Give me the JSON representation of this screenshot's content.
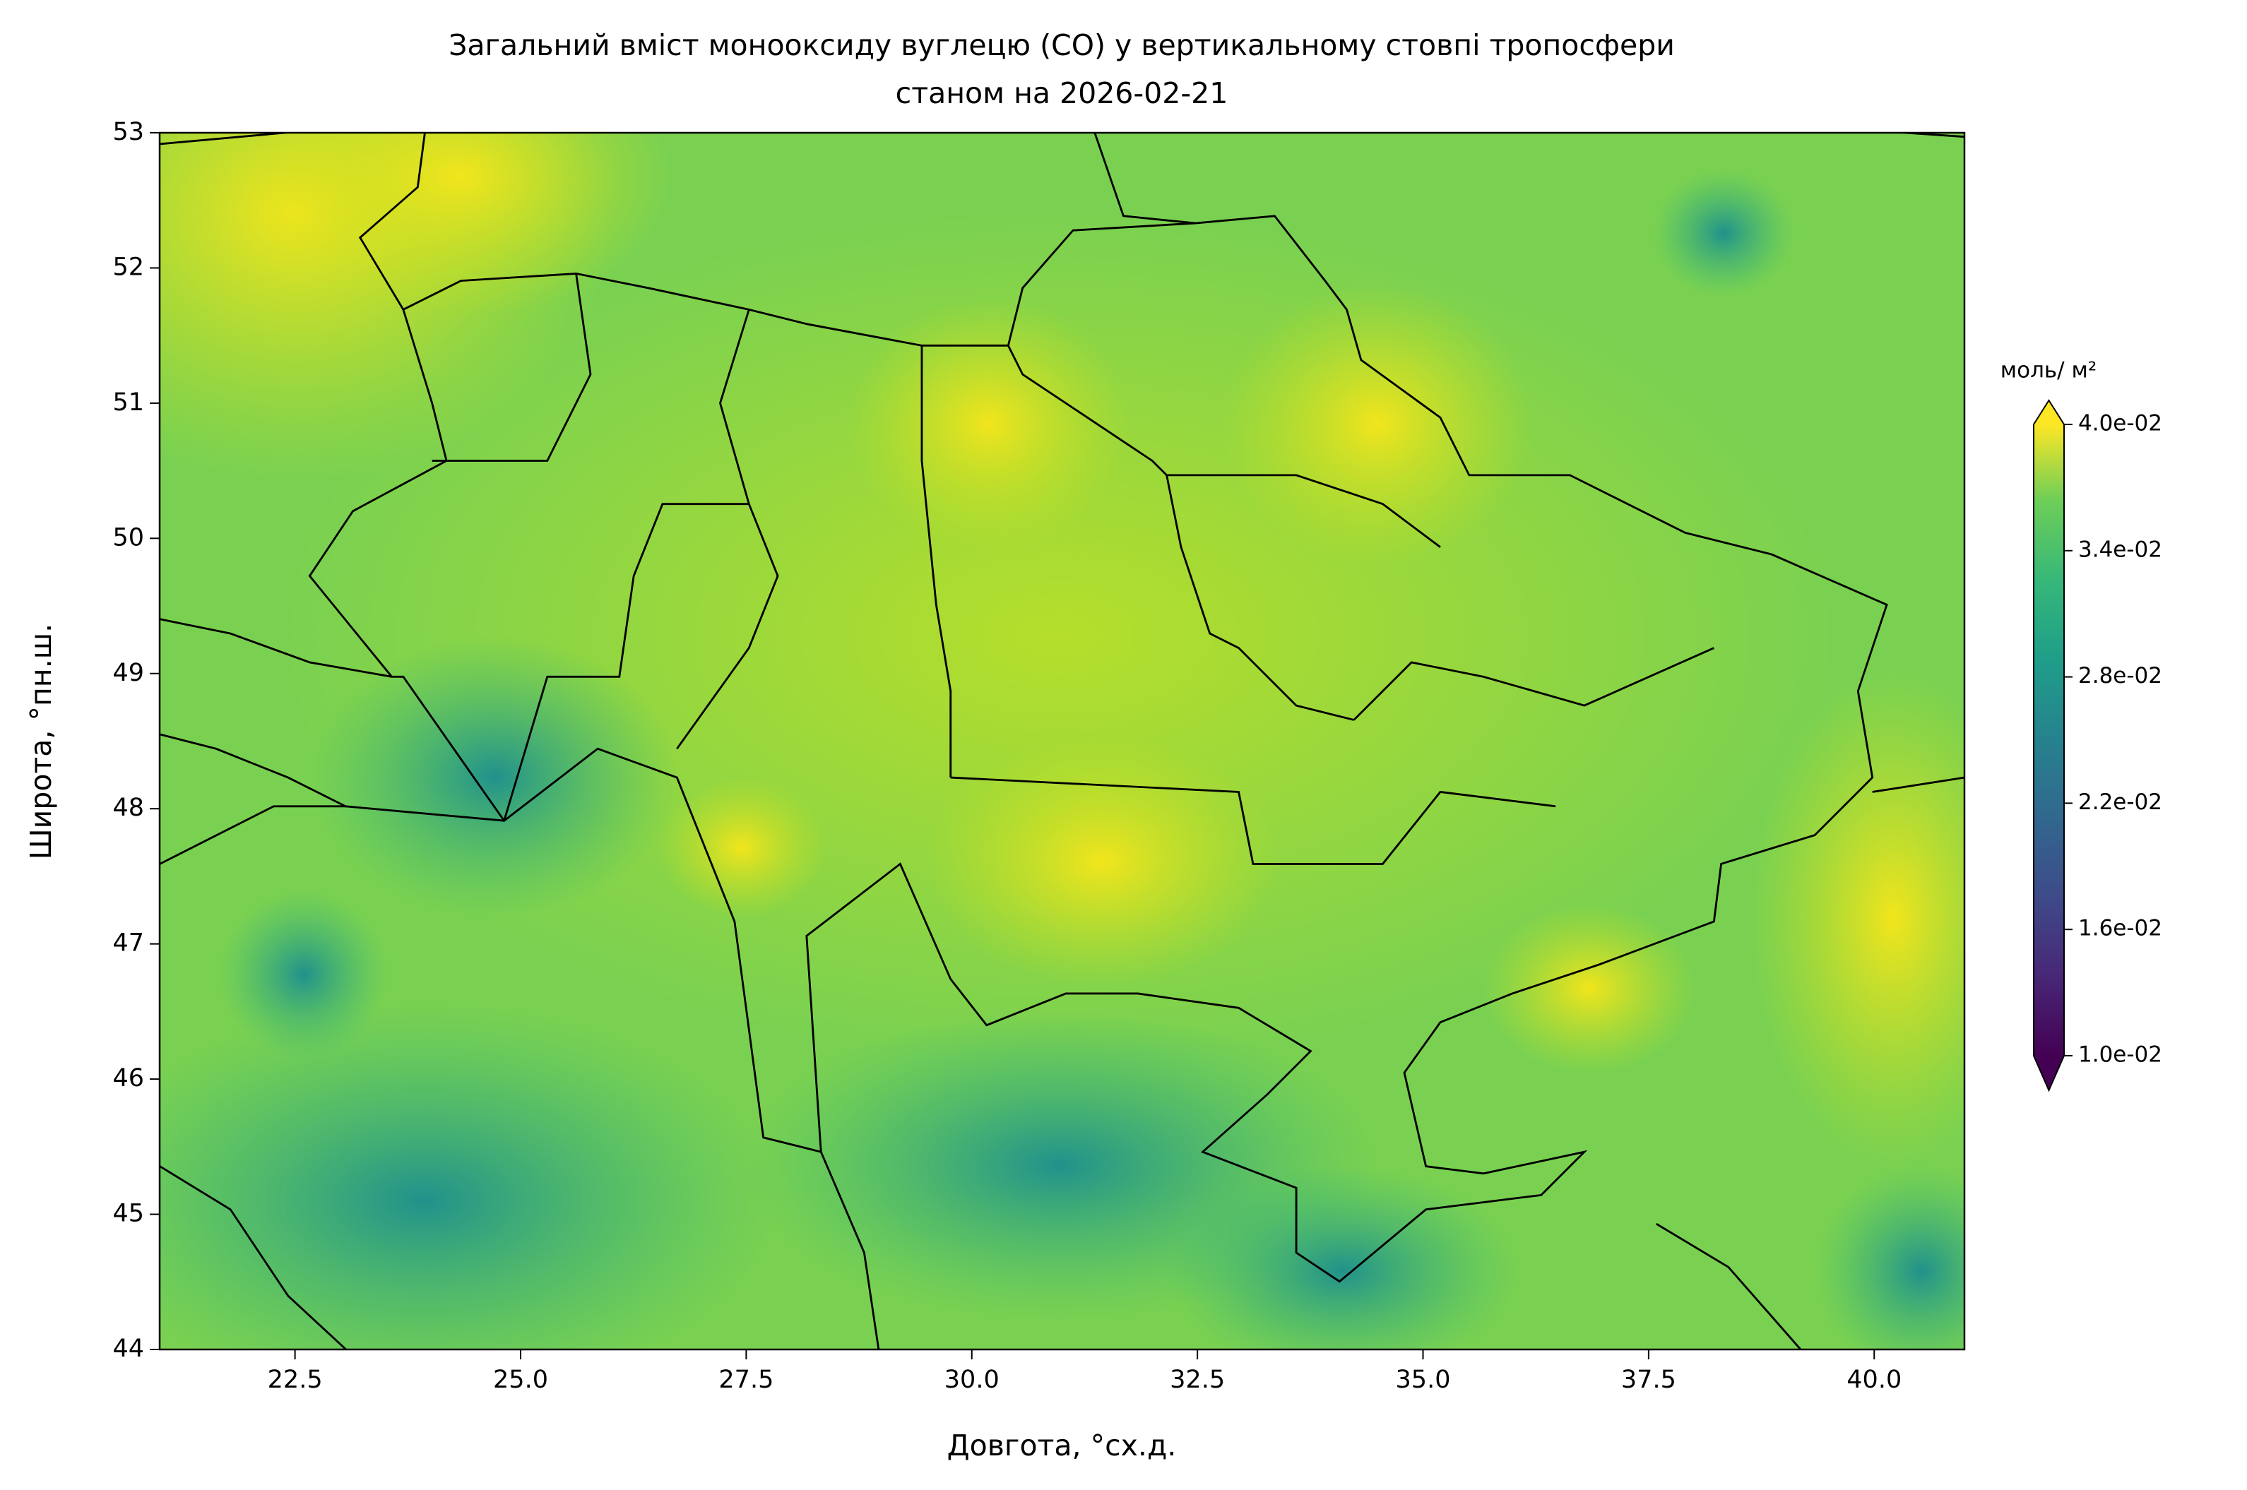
{
  "chart_data": {
    "type": "contour",
    "title": [
      "Загальний вміст монооксиду вуглецю (CO) у вертикальному стовпі тропосфери",
      "станом на 2026-02-21"
    ],
    "xlabel": "Довгота, °сх.д.",
    "ylabel": "Широта, °пн.ш.",
    "xlim": [
      21,
      41
    ],
    "xticks": [
      22.5,
      {
        "value": 25,
        "label": "25.0"
      },
      27.5,
      {
        "value": 30,
        "label": "30.0"
      },
      32.5,
      {
        "value": 35,
        "label": "35.0"
      },
      37.5,
      {
        "value": 40,
        "label": "40.0"
      }
    ],
    "ylim": [
      44,
      53
    ],
    "yticks": [
      44,
      45,
      46,
      47,
      48,
      49,
      50,
      51,
      52,
      53
    ],
    "colormap": "viridis",
    "colorbar": {
      "label": "моль/ м²",
      "extend": "both",
      "clim": [
        0.01,
        0.04
      ],
      "ticks": [
        {
          "value": 0.04,
          "label": "4.0e-02"
        },
        {
          "value": 0.034,
          "label": "3.4e-02"
        },
        {
          "value": 0.028,
          "label": "2.8e-02"
        },
        {
          "value": 0.022,
          "label": "2.2e-02"
        },
        {
          "value": 0.016,
          "label": "1.6e-02"
        },
        {
          "value": 0.01,
          "label": "1.0e-02"
        }
      ]
    }
  }
}
